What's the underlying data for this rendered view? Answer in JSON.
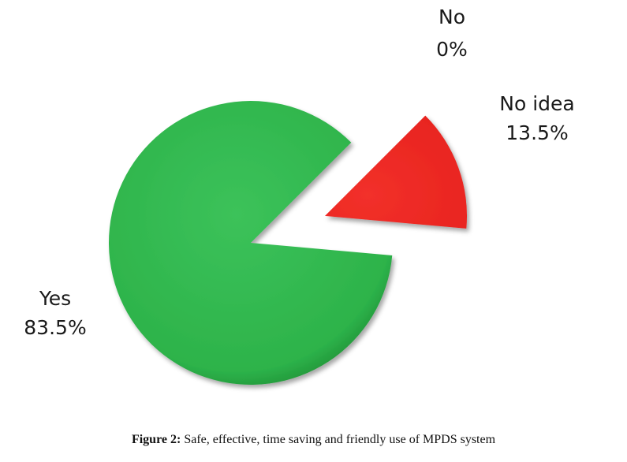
{
  "chart_data": {
    "type": "pie",
    "slices": [
      {
        "label": "Yes",
        "value": 83.5,
        "value_label": "83.5%",
        "color": "#2db34a"
      },
      {
        "label": "No",
        "value": 0,
        "value_label": "0%",
        "color": "#2a9d3f"
      },
      {
        "label": "No idea",
        "value": 13.5,
        "value_label": "13.5%",
        "color": "#ee2a24"
      }
    ],
    "exploded": "No idea",
    "start_angle_deg": 45,
    "direction": "counterclockwise"
  },
  "caption": {
    "prefix": "Figure 2:",
    "text": "Safe, effective, time saving and friendly use of MPDS system"
  }
}
